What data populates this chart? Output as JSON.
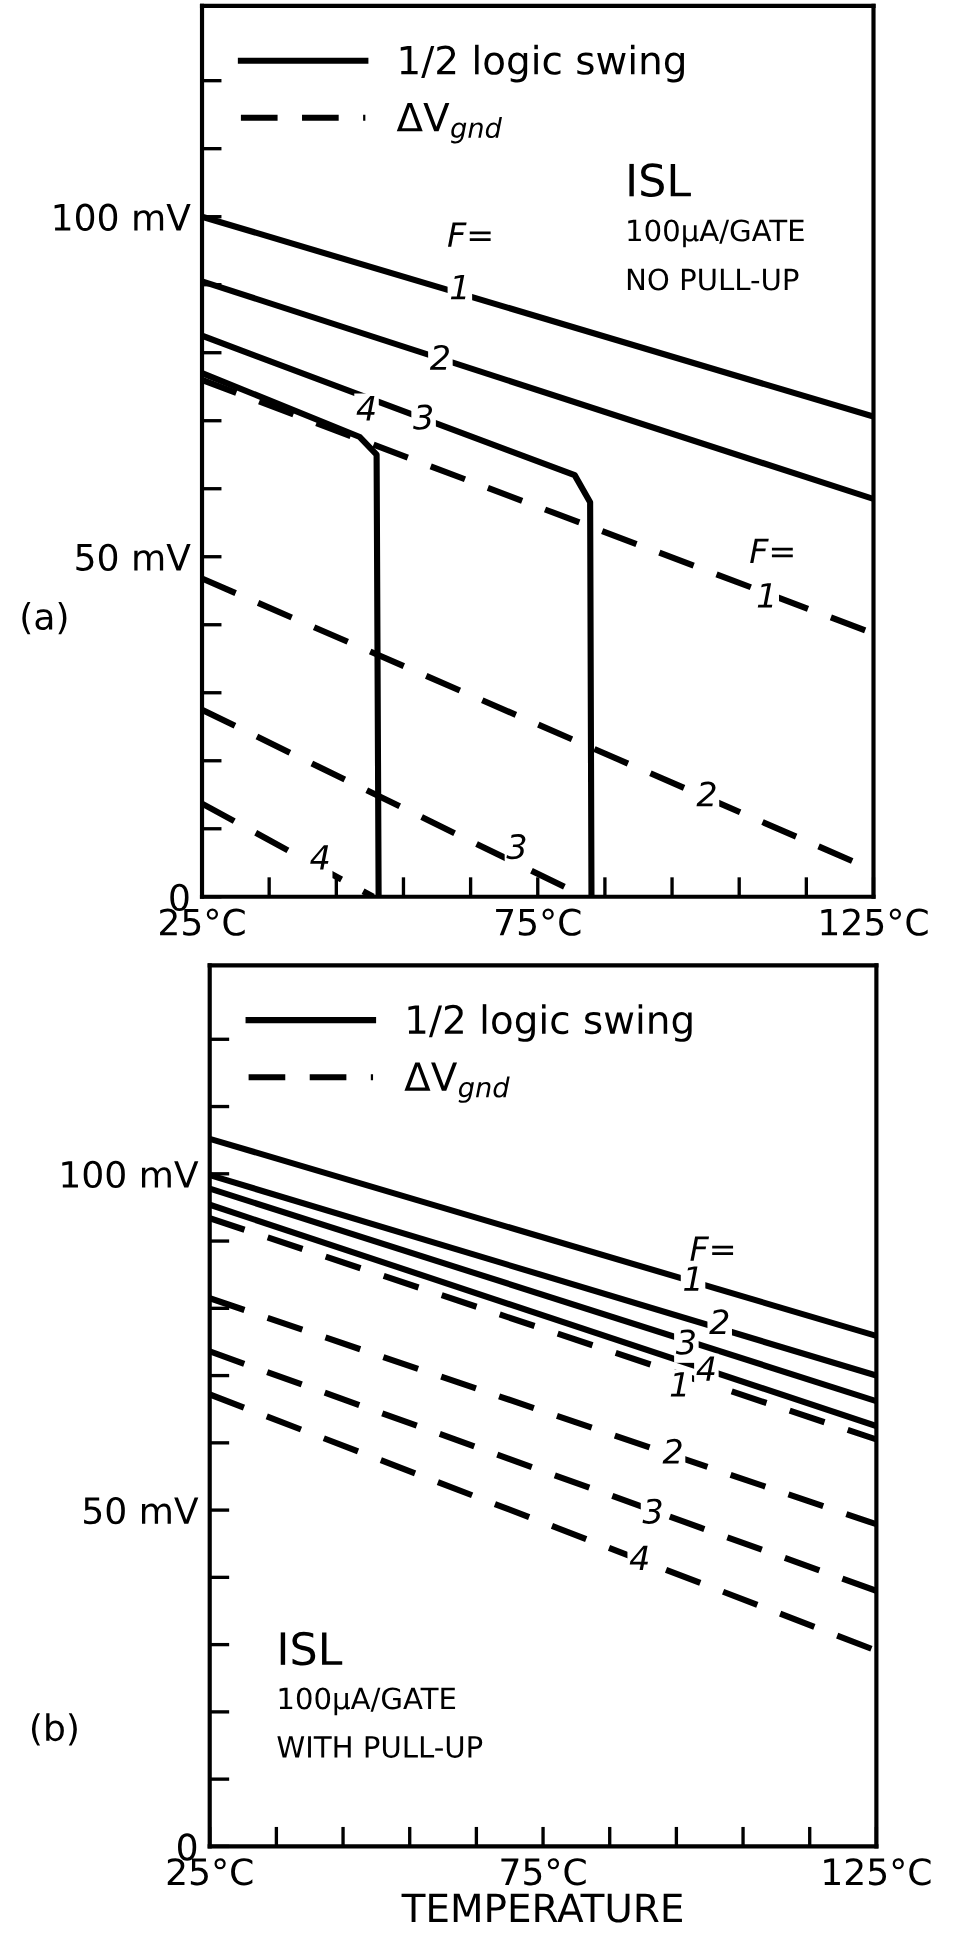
{
  "chart_data": [
    {
      "type": "line",
      "title": "(a)",
      "legend": "top left",
      "grid": false,
      "xlim": [
        25,
        125
      ],
      "ylim": [
        0,
        131
      ],
      "xticks": [
        {
          "value": 25,
          "label": "25°C"
        },
        {
          "value": 35,
          "label": null
        },
        {
          "value": 45,
          "label": null
        },
        {
          "value": 55,
          "label": null
        },
        {
          "value": 65,
          "label": null
        },
        {
          "value": 75,
          "label": "75°C"
        },
        {
          "value": 85,
          "label": null
        },
        {
          "value": 95,
          "label": null
        },
        {
          "value": 105,
          "label": null
        },
        {
          "value": 115,
          "label": null
        },
        {
          "value": 125,
          "label": "125°C"
        }
      ],
      "yticks": [
        0,
        {
          "value": 10,
          "label": null
        },
        {
          "value": 20,
          "label": null
        },
        {
          "value": 30,
          "label": null
        },
        {
          "value": 40,
          "label": null
        },
        {
          "value": 50,
          "label": "50 mV"
        },
        {
          "value": 60,
          "label": null
        },
        {
          "value": 70,
          "label": null
        },
        {
          "value": 80,
          "label": null
        },
        {
          "value": 90,
          "label": null
        },
        {
          "value": 100,
          "label": "100 mV"
        },
        {
          "value": 110,
          "label": null
        },
        {
          "value": 120,
          "label": null
        }
      ],
      "series": [
        {
          "name": "1/2 logic swing",
          "color": "#000000",
          "line_style": "solid",
          "x": [
            25,
            125
          ],
          "values": [
            100,
            70.6
          ]
        },
        {
          "color": "#000000",
          "line_style": "solid",
          "x": [
            25,
            125
          ],
          "values": [
            90.5,
            58.5
          ]
        },
        {
          "color": "#000000",
          "line_style": "solid",
          "x": [
            25,
            80.5,
            82.8,
            83
          ],
          "values": [
            82.5,
            62,
            58,
            0
          ]
        },
        {
          "color": "#000000",
          "line_style": "solid",
          "x": [
            25,
            48.5,
            51,
            51.3
          ],
          "values": [
            77,
            67.6,
            65,
            0
          ]
        },
        {
          "name": "ΔV$_{gnd}$",
          "color": "#000000",
          "line_style": "dashed",
          "x": [
            25,
            125
          ],
          "values": [
            76,
            38.7
          ]
        },
        {
          "color": "#000000",
          "line_style": "dashed",
          "x": [
            25,
            125
          ],
          "values": [
            46.8,
            3.9
          ]
        },
        {
          "color": "#000000",
          "line_style": "dashed",
          "x": [
            25,
            82
          ],
          "values": [
            27.5,
            0
          ]
        },
        {
          "color": "#000000",
          "line_style": "dashed",
          "x": [
            25,
            50.5
          ],
          "values": [
            13.7,
            0
          ]
        }
      ],
      "annotations": [
        "ISL",
        "100μA/GATE",
        "NO PULL-UP",
        "F=",
        "1",
        "2",
        "3",
        "4",
        "F=",
        "1",
        "2",
        "3",
        "4"
      ]
    },
    {
      "type": "line",
      "title": "(b)",
      "xlabel": "TEMPERATURE",
      "legend": "top left",
      "grid": false,
      "xlim": [
        25,
        125
      ],
      "ylim": [
        0,
        131
      ],
      "xticks": [
        {
          "value": 25,
          "label": "25°C"
        },
        {
          "value": 35,
          "label": null
        },
        {
          "value": 45,
          "label": null
        },
        {
          "value": 55,
          "label": null
        },
        {
          "value": 65,
          "label": null
        },
        {
          "value": 75,
          "label": "75°C"
        },
        {
          "value": 85,
          "label": null
        },
        {
          "value": 95,
          "label": null
        },
        {
          "value": 105,
          "label": null
        },
        {
          "value": 115,
          "label": null
        },
        {
          "value": 125,
          "label": "125°C"
        }
      ],
      "yticks": [
        0,
        {
          "value": 10,
          "label": null
        },
        {
          "value": 20,
          "label": null
        },
        {
          "value": 30,
          "label": null
        },
        {
          "value": 40,
          "label": null
        },
        {
          "value": 50,
          "label": "50 mV"
        },
        {
          "value": 60,
          "label": null
        },
        {
          "value": 70,
          "label": null
        },
        {
          "value": 80,
          "label": null
        },
        {
          "value": 90,
          "label": null
        },
        {
          "value": 100,
          "label": "100 mV"
        },
        {
          "value": 110,
          "label": null
        },
        {
          "value": 120,
          "label": null
        }
      ],
      "series": [
        {
          "name": "1/2 logic swing",
          "color": "#000000",
          "line_style": "solid",
          "x": [
            25,
            125
          ],
          "values": [
            105.2,
            75.9
          ]
        },
        {
          "color": "#000000",
          "line_style": "solid",
          "x": [
            25,
            125
          ],
          "values": [
            99.8,
            70
          ]
        },
        {
          "color": "#000000",
          "line_style": "solid",
          "x": [
            25,
            125
          ],
          "values": [
            97.8,
            66.2
          ]
        },
        {
          "color": "#000000",
          "line_style": "solid",
          "x": [
            25,
            125
          ],
          "values": [
            95.4,
            62.5
          ]
        },
        {
          "name": "ΔV$_{gnd}$",
          "color": "#000000",
          "line_style": "dashed",
          "x": [
            25,
            125
          ],
          "values": [
            93.4,
            60.5
          ]
        },
        {
          "color": "#000000",
          "line_style": "dashed",
          "x": [
            25,
            125
          ],
          "values": [
            81.5,
            47.9
          ]
        },
        {
          "color": "#000000",
          "line_style": "dashed",
          "x": [
            25,
            125
          ],
          "values": [
            73.6,
            38
          ]
        },
        {
          "color": "#000000",
          "line_style": "dashed",
          "x": [
            25,
            125
          ],
          "values": [
            67.2,
            29.1
          ]
        }
      ],
      "annotations": [
        "ISL",
        "100μA/GATE",
        "WITH PULL-UP",
        "F=",
        "1",
        "2",
        "3",
        "4",
        "1",
        "2",
        "3",
        "4"
      ]
    }
  ]
}
